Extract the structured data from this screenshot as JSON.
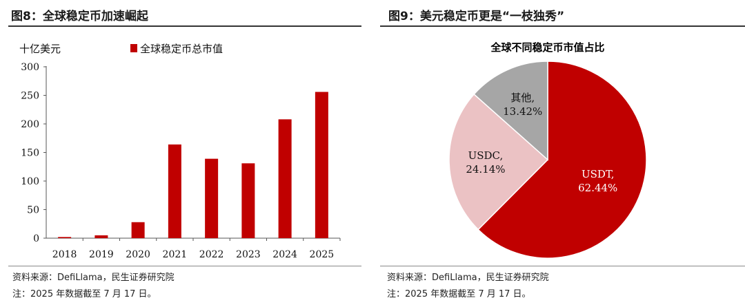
{
  "left": {
    "title": "图8：全球稳定币加速崛起",
    "source": "资料来源：DefiLlama，民生证券研究院",
    "footnote": "注：2025 年数据截至 7 月 17 日。"
  },
  "right": {
    "title": "图9：美元稳定币更是“一枝独秀”",
    "source": "资料来源：DefiLlama，民生证券研究院",
    "footnote": "注：2025 年数据截至 7 月 17 日。"
  },
  "chart_data": [
    {
      "type": "bar",
      "title": "",
      "ylabel": "十亿美元",
      "xlabel": "",
      "categories": [
        "2018",
        "2019",
        "2020",
        "2021",
        "2022",
        "2023",
        "2024",
        "2025"
      ],
      "series": [
        {
          "name": "全球稳定币总市值",
          "values": [
            2,
            5,
            28,
            164,
            139,
            131,
            208,
            256
          ],
          "color": "#c00000"
        }
      ],
      "ylim": [
        0,
        300
      ],
      "yticks": [
        0,
        50,
        100,
        150,
        200,
        250,
        300
      ],
      "grid": false,
      "legend": "top-center"
    },
    {
      "type": "pie",
      "title": "全球不同稳定币市值占比",
      "slices": [
        {
          "label": "USDT,",
          "pct_text": "62.44%",
          "value": 62.44,
          "color": "#c00000",
          "text_color": "#ffffff"
        },
        {
          "label": "USDC,",
          "pct_text": "24.14%",
          "value": 24.14,
          "color": "#ebc2c4",
          "text_color": "#111111"
        },
        {
          "label": "其他,",
          "pct_text": "13.42%",
          "value": 13.42,
          "color": "#a6a6a6",
          "text_color": "#111111"
        }
      ]
    }
  ]
}
